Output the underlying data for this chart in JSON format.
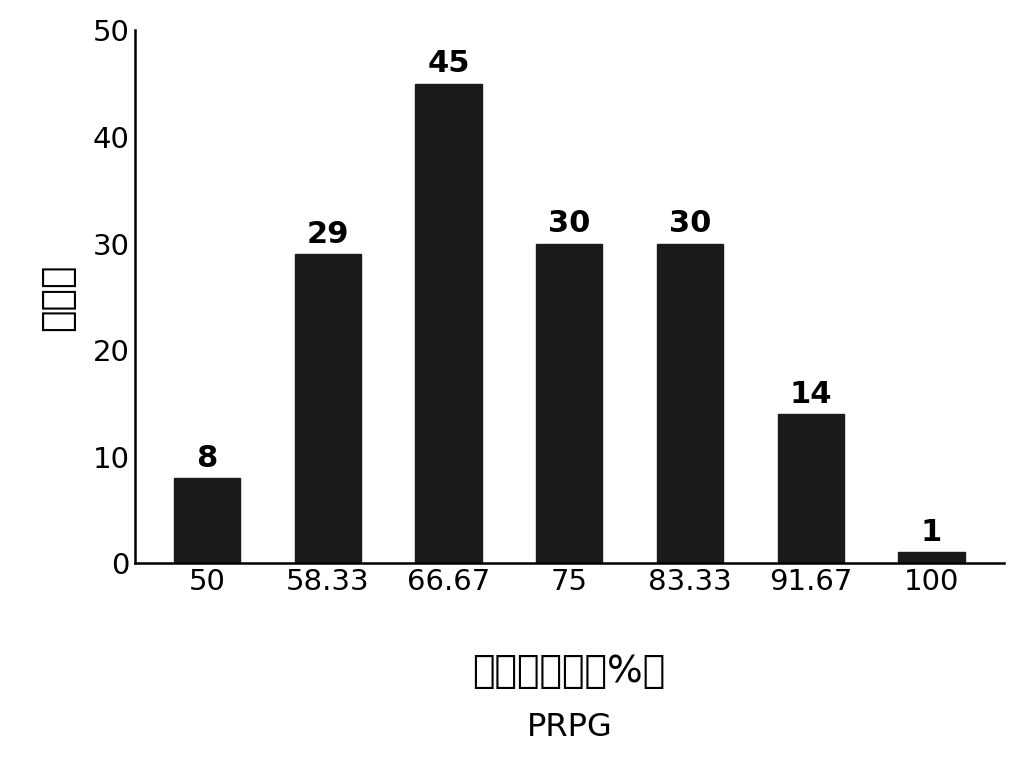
{
  "categories": [
    "50",
    "58.33",
    "66.67",
    "75",
    "83.33",
    "91.67",
    "100"
  ],
  "values": [
    8,
    29,
    45,
    30,
    30,
    14,
    1
  ],
  "bar_color": "#1a1a1a",
  "bar_width": 0.55,
  "ylim": [
    0,
    50
  ],
  "yticks": [
    0,
    10,
    20,
    30,
    40,
    50
  ],
  "ylabel": "单株数",
  "xlabel_line1": "背景回复率（%）",
  "xlabel_line2": "PRPG",
  "background_color": "#ffffff",
  "tick_fontsize": 21,
  "bar_label_fontsize": 22,
  "ylabel_fontsize": 27,
  "xlabel_fontsize": 27,
  "xlabel2_fontsize": 23
}
